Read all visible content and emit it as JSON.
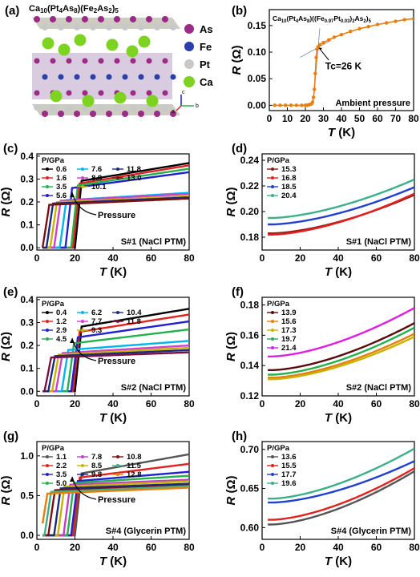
{
  "panel_a": {
    "label": "(a)",
    "formula": "Ca10(Pt4As8)(Fe2As2)5",
    "legend": [
      {
        "name": "As",
        "color": "#9b2c86"
      },
      {
        "name": "Fe",
        "color": "#2a3fa8"
      },
      {
        "name": "Pt",
        "color": "#c8c8c8"
      },
      {
        "name": "Ca",
        "color": "#7ed321"
      }
    ],
    "axes_glyph": [
      "c",
      "a",
      "b"
    ]
  },
  "chart_data": [
    {
      "id": "b",
      "label": "(b)",
      "type": "line",
      "title": "Ca10(Pt4As8)((Fe0.97Pt0.03)2As2)5",
      "xlabel": "T (K)",
      "ylabel": "R (Ω)",
      "xlim": [
        0,
        80
      ],
      "ylim": [
        -0.01,
        0.18
      ],
      "xticks": [
        0,
        10,
        20,
        30,
        40,
        50,
        60,
        70,
        80
      ],
      "yticks": [
        0.0,
        0.05,
        0.1,
        0.15
      ],
      "ytick_labels": [
        "0.00",
        "0.05",
        "0.10",
        "0.15"
      ],
      "annotations": [
        "Tc=26 K",
        "Ambient pressure"
      ],
      "series": [
        {
          "color": "#e87e0e",
          "marker": "dot",
          "x": [
            3,
            6,
            9,
            12,
            15,
            18,
            20,
            21,
            22,
            23,
            24,
            24.5,
            25,
            25.5,
            26,
            26.5,
            27,
            28,
            30,
            33,
            36,
            40,
            45,
            50,
            55,
            60,
            65,
            70,
            75,
            80
          ],
          "y": [
            0,
            0,
            0,
            0,
            0,
            0,
            0,
            0,
            0.001,
            0.002,
            0.006,
            0.015,
            0.03,
            0.06,
            0.09,
            0.105,
            0.11,
            0.114,
            0.118,
            0.123,
            0.128,
            0.133,
            0.139,
            0.144,
            0.148,
            0.152,
            0.155,
            0.158,
            0.161,
            0.163
          ]
        }
      ]
    },
    {
      "id": "c",
      "label": "(c)",
      "type": "line",
      "xlabel": "T (K)",
      "ylabel": "R (Ω)",
      "xlim": [
        0,
        80
      ],
      "ylim": [
        -0.01,
        0.41
      ],
      "xticks": [
        0,
        20,
        40,
        60,
        80
      ],
      "yticks": [
        0.0,
        0.1,
        0.2,
        0.3,
        0.4
      ],
      "ytick_labels": [
        "0.0",
        "0.1",
        "0.2",
        "0.3",
        "0.4"
      ],
      "legend_title": "P/GPa",
      "annotations": [
        "Pressure",
        "S#1 (NaCl PTM)"
      ],
      "series": [
        {
          "name": "0.6",
          "color": "#000000",
          "tc": 22,
          "r0": 0.26,
          "r80": 0.37
        },
        {
          "name": "1.6",
          "color": "#e4201e",
          "tc": 21,
          "r0": 0.25,
          "r80": 0.36
        },
        {
          "name": "3.5",
          "color": "#22b14c",
          "tc": 20,
          "r0": 0.245,
          "r80": 0.345
        },
        {
          "name": "5.6",
          "color": "#2020d0",
          "tc": 17,
          "r0": 0.24,
          "r80": 0.33
        },
        {
          "name": "7.6",
          "color": "#00b4f0",
          "tc": 14,
          "r0": 0.2,
          "r80": 0.24
        },
        {
          "name": "8.8",
          "color": "#d040d0",
          "tc": 11,
          "r0": 0.2,
          "r80": 0.235
        },
        {
          "name": "10.1",
          "color": "#c8b400",
          "tc": 9,
          "r0": 0.195,
          "r80": 0.225
        },
        {
          "name": "11.8",
          "color": "#1b2a80",
          "tc": 7,
          "r0": 0.19,
          "r80": 0.22
        },
        {
          "name": "13.0",
          "color": "#7a1010",
          "tc": 5,
          "r0": 0.185,
          "r80": 0.215
        }
      ]
    },
    {
      "id": "d",
      "label": "(d)",
      "type": "line",
      "xlabel": "T (K)",
      "ylabel": "R (Ω)",
      "xlim": [
        0,
        80
      ],
      "ylim": [
        0.17,
        0.245
      ],
      "xticks": [
        0,
        20,
        40,
        60,
        80
      ],
      "yticks": [
        0.18,
        0.2,
        0.22,
        0.24
      ],
      "ytick_labels": [
        "0.18",
        "0.20",
        "0.22",
        "0.24"
      ],
      "legend_title": "P/GPa",
      "annotations": [
        "S#1 (NaCl PTM)"
      ],
      "series": [
        {
          "name": "15.3",
          "color": "#8b1a1a",
          "r0": 0.183,
          "r80": 0.213
        },
        {
          "name": "16.8",
          "color": "#e4201e",
          "r0": 0.182,
          "r80": 0.214
        },
        {
          "name": "18.5",
          "color": "#2040d0",
          "r0": 0.19,
          "r80": 0.219
        },
        {
          "name": "20.4",
          "color": "#3cb08a",
          "r0": 0.195,
          "r80": 0.225
        }
      ]
    },
    {
      "id": "e",
      "label": "(e)",
      "type": "line",
      "xlabel": "T (K)",
      "ylabel": "R (Ω)",
      "xlim": [
        0,
        80
      ],
      "ylim": [
        -0.02,
        0.41
      ],
      "xticks": [
        0,
        20,
        40,
        60,
        80
      ],
      "yticks": [
        0.0,
        0.1,
        0.2,
        0.3,
        0.4
      ],
      "ytick_labels": [
        "0.0",
        "0.1",
        "0.2",
        "0.3",
        "0.4"
      ],
      "legend_title": "P/GPa",
      "annotations": [
        "Pressure",
        "S#2 (NaCl PTM)"
      ],
      "series": [
        {
          "name": "0.4",
          "color": "#000000",
          "tc": 22,
          "r0": 0.25,
          "r80": 0.36
        },
        {
          "name": "1.2",
          "color": "#e4201e",
          "tc": 21,
          "r0": 0.23,
          "r80": 0.335
        },
        {
          "name": "2.9",
          "color": "#2020d0",
          "tc": 20,
          "r0": 0.21,
          "r80": 0.305
        },
        {
          "name": "4.5",
          "color": "#22b14c",
          "tc": 18,
          "r0": 0.19,
          "r80": 0.27
        },
        {
          "name": "6.2",
          "color": "#00b4f0",
          "tc": 15,
          "r0": 0.17,
          "r80": 0.22
        },
        {
          "name": "7.7",
          "color": "#d040d0",
          "tc": 12,
          "r0": 0.16,
          "r80": 0.2
        },
        {
          "name": "9.3",
          "color": "#c8b400",
          "tc": 10,
          "r0": 0.155,
          "r80": 0.19
        },
        {
          "name": "10.4",
          "color": "#1b2a80",
          "tc": 8,
          "r0": 0.15,
          "r80": 0.18
        },
        {
          "name": "11.8",
          "color": "#7a1040",
          "tc": 6,
          "r0": 0.145,
          "r80": 0.17
        }
      ]
    },
    {
      "id": "f",
      "label": "(f)",
      "type": "line",
      "xlabel": "T (K)",
      "ylabel": "R (Ω)",
      "xlim": [
        0,
        80
      ],
      "ylim": [
        0.12,
        0.185
      ],
      "xticks": [
        0,
        20,
        40,
        60,
        80
      ],
      "yticks": [
        0.12,
        0.14,
        0.16,
        0.18
      ],
      "ytick_labels": [
        "0.12",
        "0.14",
        "0.16",
        "0.18"
      ],
      "legend_title": "P/GPa",
      "annotations": [
        "S#2 (NaCl PTM)"
      ],
      "series": [
        {
          "name": "13.9",
          "color": "#5a0a0a",
          "r0": 0.137,
          "r80": 0.168
        },
        {
          "name": "15.6",
          "color": "#e87e0e",
          "r0": 0.132,
          "r80": 0.161
        },
        {
          "name": "17.3",
          "color": "#c8b400",
          "r0": 0.131,
          "r80": 0.159
        },
        {
          "name": "19.7",
          "color": "#22b14c",
          "r0": 0.134,
          "r80": 0.165
        },
        {
          "name": "21.4",
          "color": "#e01ee0",
          "r0": 0.146,
          "r80": 0.178
        }
      ]
    },
    {
      "id": "g",
      "label": "(g)",
      "type": "line",
      "xlabel": "T (K)",
      "ylabel": "R (Ω)",
      "xlim": [
        0,
        80
      ],
      "ylim": [
        -0.05,
        1.18
      ],
      "xticks": [
        0,
        20,
        40,
        60,
        80
      ],
      "yticks": [
        0.0,
        0.5,
        1.0
      ],
      "ytick_labels": [
        "0.0",
        "0.5",
        "1.0"
      ],
      "legend_title": "P/GPa",
      "annotations": [
        "Pressure",
        "S#4 (Glycerin PTM)"
      ],
      "series": [
        {
          "name": "1.1",
          "color": "#555555",
          "tc": 22,
          "r0": 0.68,
          "r80": 1.02
        },
        {
          "name": "2.2",
          "color": "#e4201e",
          "tc": 21,
          "r0": 0.66,
          "r80": 0.9
        },
        {
          "name": "3.5",
          "color": "#2020d0",
          "tc": 20,
          "r0": 0.64,
          "r80": 0.8
        },
        {
          "name": "5.0",
          "color": "#22b14c",
          "tc": 18,
          "r0": 0.63,
          "r80": 0.75
        },
        {
          "name": "7.8",
          "color": "#c040c0",
          "tc": 16,
          "r0": 0.62,
          "r80": 0.7
        },
        {
          "name": "8.5",
          "color": "#c8b400",
          "tc": 13,
          "r0": 0.6,
          "r80": 0.68
        },
        {
          "name": "9.8",
          "color": "#1b2a80",
          "tc": 11,
          "r0": 0.58,
          "r80": 0.65
        },
        {
          "name": "10.8",
          "color": "#7a1010",
          "tc": 8,
          "r0": 0.56,
          "r80": 0.63
        },
        {
          "name": "11.5",
          "color": "#3cb08a",
          "tc": 6,
          "r0": 0.54,
          "r80": 0.62
        },
        {
          "name": "12.8",
          "color": "#e87e0e",
          "tc": 4,
          "r0": 0.52,
          "r80": 0.6
        }
      ]
    },
    {
      "id": "h",
      "label": "(h)",
      "type": "line",
      "xlabel": "T (K)",
      "ylabel": "R (Ω)",
      "xlim": [
        0,
        80
      ],
      "ylim": [
        0.585,
        0.71
      ],
      "xticks": [
        0,
        20,
        40,
        60,
        80
      ],
      "yticks": [
        0.6,
        0.65,
        0.7
      ],
      "ytick_labels": [
        "0.60",
        "0.65",
        "0.70"
      ],
      "legend_title": "P/GPa",
      "annotations": [
        "S#4 (Glycerin PTM)"
      ],
      "series": [
        {
          "name": "13.6",
          "color": "#555555",
          "r0": 0.604,
          "r80": 0.672
        },
        {
          "name": "15.5",
          "color": "#e4201e",
          "r0": 0.61,
          "r80": 0.676
        },
        {
          "name": "17.7",
          "color": "#2040d0",
          "r0": 0.632,
          "r80": 0.685
        },
        {
          "name": "19.6",
          "color": "#3cb08a",
          "r0": 0.637,
          "r80": 0.701
        }
      ]
    }
  ]
}
